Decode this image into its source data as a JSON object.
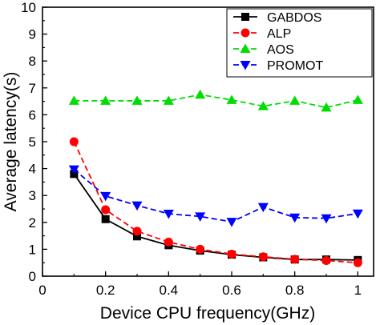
{
  "chart_data": {
    "type": "line",
    "title": "",
    "xlabel": "Device CPU frequency(GHz)",
    "ylabel": "Average latency(s)",
    "xlim": [
      0,
      1.05
    ],
    "ylim": [
      0,
      10
    ],
    "xticks": [
      0,
      0.2,
      0.4,
      0.6,
      0.8,
      1
    ],
    "xtick_labels": [
      "0",
      "0.2",
      "0.4",
      "0.6",
      "0.8",
      "1"
    ],
    "yticks": [
      0,
      1,
      2,
      3,
      4,
      5,
      6,
      7,
      8,
      9,
      10
    ],
    "ytick_labels": [
      "0",
      "1",
      "2",
      "3",
      "4",
      "5",
      "6",
      "7",
      "8",
      "9",
      "10"
    ],
    "grid": false,
    "legend_position": "top-right",
    "x": [
      0.1,
      0.2,
      0.3,
      0.4,
      0.5,
      0.6,
      0.7,
      0.8,
      0.9,
      1.0
    ],
    "series": [
      {
        "name": "GABDOS",
        "color": "#000000",
        "line_style": "solid",
        "marker": "square",
        "values": [
          3.8,
          2.12,
          1.48,
          1.15,
          0.95,
          0.8,
          0.7,
          0.62,
          0.62,
          0.6
        ]
      },
      {
        "name": "ALP",
        "color": "#ff0000",
        "line_style": "dashed",
        "marker": "circle",
        "values": [
          5.0,
          2.47,
          1.67,
          1.27,
          1.0,
          0.82,
          0.72,
          0.63,
          0.58,
          0.5
        ]
      },
      {
        "name": "AOS",
        "color": "#00dd00",
        "line_style": "dashed",
        "marker": "triangle-up",
        "values": [
          6.52,
          6.52,
          6.52,
          6.52,
          6.75,
          6.55,
          6.32,
          6.52,
          6.27,
          6.55
        ]
      },
      {
        "name": "PROMOT",
        "color": "#0000ff",
        "line_style": "dashed",
        "marker": "triangle-down",
        "values": [
          3.97,
          2.98,
          2.63,
          2.32,
          2.22,
          2.02,
          2.57,
          2.18,
          2.15,
          2.33
        ]
      }
    ]
  }
}
